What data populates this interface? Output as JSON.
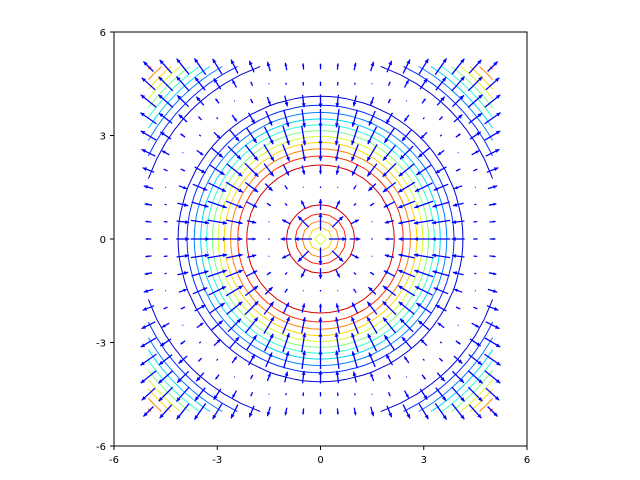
{
  "chart_data": {
    "type": "contour",
    "title": "",
    "xlabel": "",
    "ylabel": "",
    "xlim": [
      -6,
      6
    ],
    "ylim": [
      -6,
      6
    ],
    "grid": false,
    "legend": "none",
    "x_ticks": [
      -6,
      -3,
      0,
      3,
      6
    ],
    "y_ticks": [
      -6,
      -3,
      0,
      3,
      6
    ],
    "x_tick_labels": [
      "-6",
      "-3",
      "0",
      "3",
      "6"
    ],
    "y_tick_labels": [
      "6",
      "3",
      "0",
      "-3",
      "-6"
    ],
    "contour_layer": {
      "function": "sin(r), r = sqrt(x^2 + y^2)",
      "grid_x_range": [
        -5,
        5
      ],
      "grid_y_range": [
        -5,
        5
      ],
      "level_count": 11,
      "colormap": "jet"
    },
    "vector_layer": {
      "field": "gradient of sin(r)",
      "grid_x_range": [
        -5,
        5
      ],
      "grid_y_range": [
        -5,
        5
      ],
      "grid_step": 0.5,
      "arrow_color": "#0000ff"
    }
  }
}
